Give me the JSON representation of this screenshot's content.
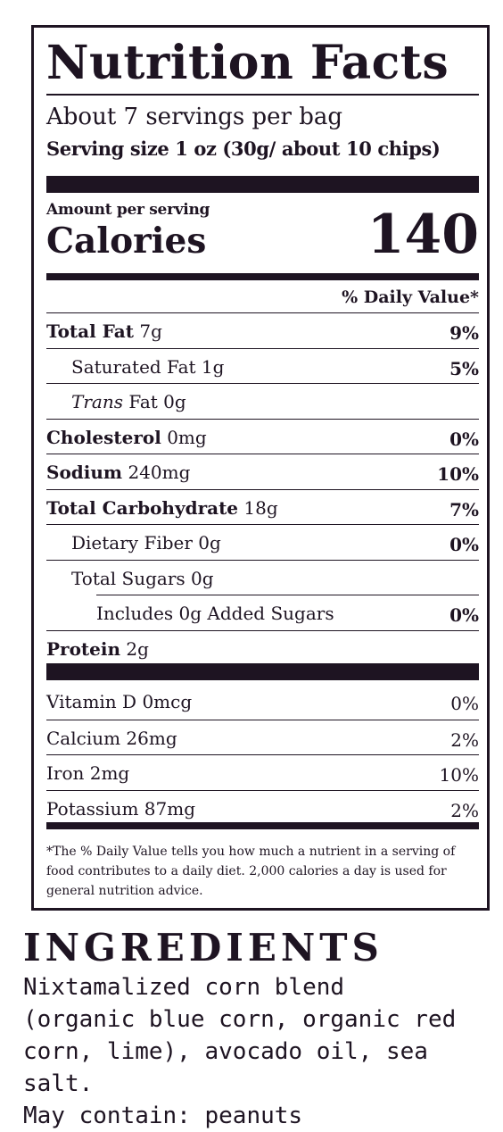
{
  "label": {
    "title": "Nutrition Facts",
    "servings_per_container": "About 7 servings per bag",
    "serving_size": "Serving size 1 oz (30g/ about 10 chips)",
    "amount_per_serving": "Amount per serving",
    "calories_label": "Calories",
    "calories_value": "140",
    "daily_value_header": "% Daily Value*",
    "nutrients": [
      {
        "name": "Total Fat",
        "amount": "7g",
        "dv": "9%"
      },
      {
        "name": "Saturated Fat",
        "amount": "1g",
        "dv": "5%"
      },
      {
        "name": "Trans",
        "amount": "Fat 0g",
        "dv": ""
      },
      {
        "name": "Cholesterol",
        "amount": "0mg",
        "dv": "0%"
      },
      {
        "name": "Sodium",
        "amount": "240mg",
        "dv": "10%"
      },
      {
        "name": "Total Carbohydrate",
        "amount": "18g",
        "dv": "7%"
      },
      {
        "name": "Dietary Fiber",
        "amount": "0g",
        "dv": "0%"
      },
      {
        "name": "Total Sugars",
        "amount": "0g",
        "dv": ""
      },
      {
        "name": "Includes 0g Added Sugars",
        "amount": "",
        "dv": "0%"
      },
      {
        "name": "Protein",
        "amount": "2g",
        "dv": ""
      }
    ],
    "vitamins": [
      {
        "name": "Vitamin D 0mcg",
        "dv": "0%"
      },
      {
        "name": "Calcium 26mg",
        "dv": "2%"
      },
      {
        "name": "Iron 2mg",
        "dv": "10%"
      },
      {
        "name": "Potassium 87mg",
        "dv": "2%"
      }
    ],
    "footnote": "*The % Daily Value tells you how much a nutrient in a serving of food contributes to a daily diet. 2,000 calories a day is used for general nutrition advice."
  },
  "ingredients": {
    "title": "INGREDIENTS",
    "text": "Nixtamalized corn blend\n(organic blue corn, organic red\ncorn, lime), avocado oil, sea salt.\nMay contain: peanuts"
  }
}
